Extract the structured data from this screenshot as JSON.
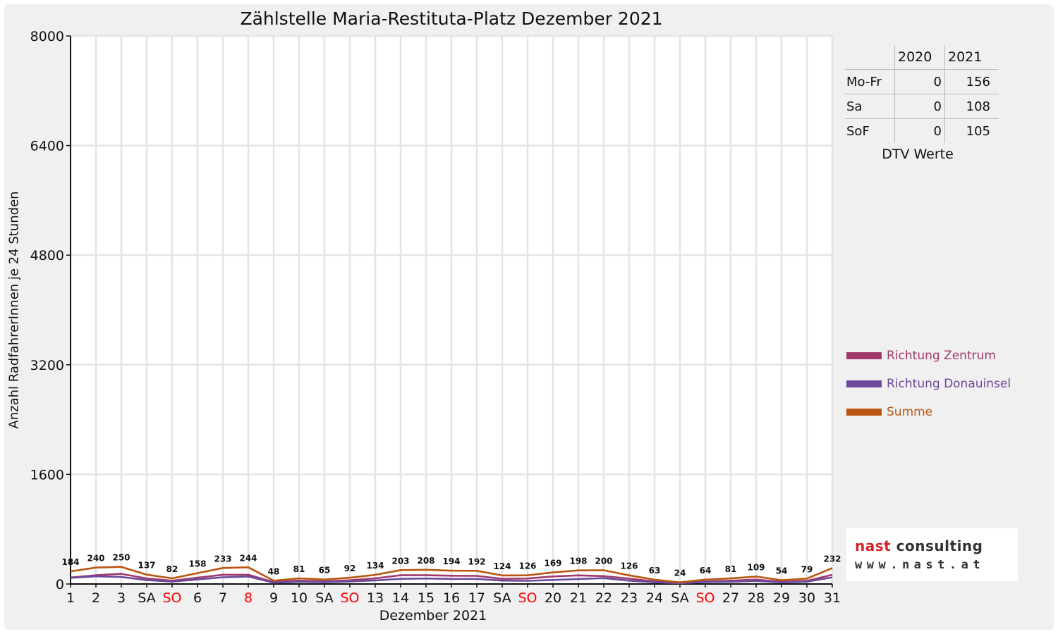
{
  "chart_data": {
    "type": "line",
    "title": "Zählstelle Maria-Restituta-Platz Dezember 2021",
    "xlabel": "Dezember 2021",
    "ylabel": "Anzahl RadfahrerInnen je 24 Stunden",
    "ylim": [
      0,
      8000
    ],
    "yticks": [
      0,
      1600,
      3200,
      4800,
      6400,
      8000
    ],
    "grid": true,
    "legend_position": "right",
    "categories": [
      "1",
      "2",
      "3",
      "SA",
      "SO",
      "6",
      "7",
      "8",
      "9",
      "10",
      "SA",
      "SO",
      "13",
      "14",
      "15",
      "16",
      "17",
      "SA",
      "SO",
      "20",
      "21",
      "22",
      "23",
      "24",
      "SA",
      "SO",
      "27",
      "28",
      "29",
      "30",
      "31"
    ],
    "holidays": [
      "SO",
      "SO",
      "8",
      "SO",
      "SO"
    ],
    "series": [
      {
        "name": "Richtung Zentrum",
        "color": "#a0396e",
        "values": [
          95,
          128,
          148,
          80,
          48,
          92,
          135,
          135,
          28,
          48,
          38,
          55,
          82,
          128,
          128,
          120,
          118,
          75,
          80,
          110,
          125,
          115,
          78,
          38,
          14,
          35,
          48,
          65,
          30,
          45,
          135
        ]
      },
      {
        "name": "Richtung Donauinsel",
        "color": "#6a4a9c",
        "values": [
          89,
          112,
          102,
          57,
          34,
          66,
          98,
          109,
          20,
          33,
          27,
          37,
          52,
          75,
          80,
          74,
          74,
          49,
          46,
          59,
          73,
          85,
          48,
          25,
          10,
          29,
          33,
          44,
          24,
          34,
          97
        ]
      },
      {
        "name": "Summe",
        "color": "#b9560f",
        "values": [
          184,
          240,
          250,
          137,
          82,
          158,
          233,
          244,
          48,
          81,
          65,
          92,
          134,
          203,
          208,
          194,
          192,
          124,
          126,
          169,
          198,
          200,
          126,
          63,
          24,
          64,
          81,
          109,
          54,
          79,
          232
        ]
      }
    ],
    "data_labels": [
      "184",
      "240",
      "250",
      "137",
      "82",
      "158",
      "233",
      "244",
      "48",
      "81",
      "65",
      "92",
      "134",
      "203",
      "208",
      "194",
      "192",
      "124",
      "126",
      "169",
      "198",
      "200",
      "126",
      "63",
      "24",
      "64",
      "81",
      "109",
      "54",
      "79",
      "232"
    ]
  },
  "dtv": {
    "headers": [
      "2020",
      "2021"
    ],
    "rows": [
      {
        "label": "Mo-Fr",
        "v2020": "0",
        "v2021": "156"
      },
      {
        "label": "Sa",
        "v2020": "0",
        "v2021": "108"
      },
      {
        "label": "SoF",
        "v2020": "0",
        "v2021": "105"
      }
    ],
    "caption": "DTV Werte"
  },
  "logo": {
    "name_accent": "nast",
    "name_rest": "consulting",
    "url": "www.nast.at"
  },
  "colors": {
    "holiday": "#ff0000",
    "zentrum": "#a0396e",
    "donauinsel": "#6a4a9c",
    "summe": "#b9560f",
    "grid": "#e4e4e4",
    "plot_background": "#ffffff",
    "frame_background": "#f0f0f0"
  }
}
